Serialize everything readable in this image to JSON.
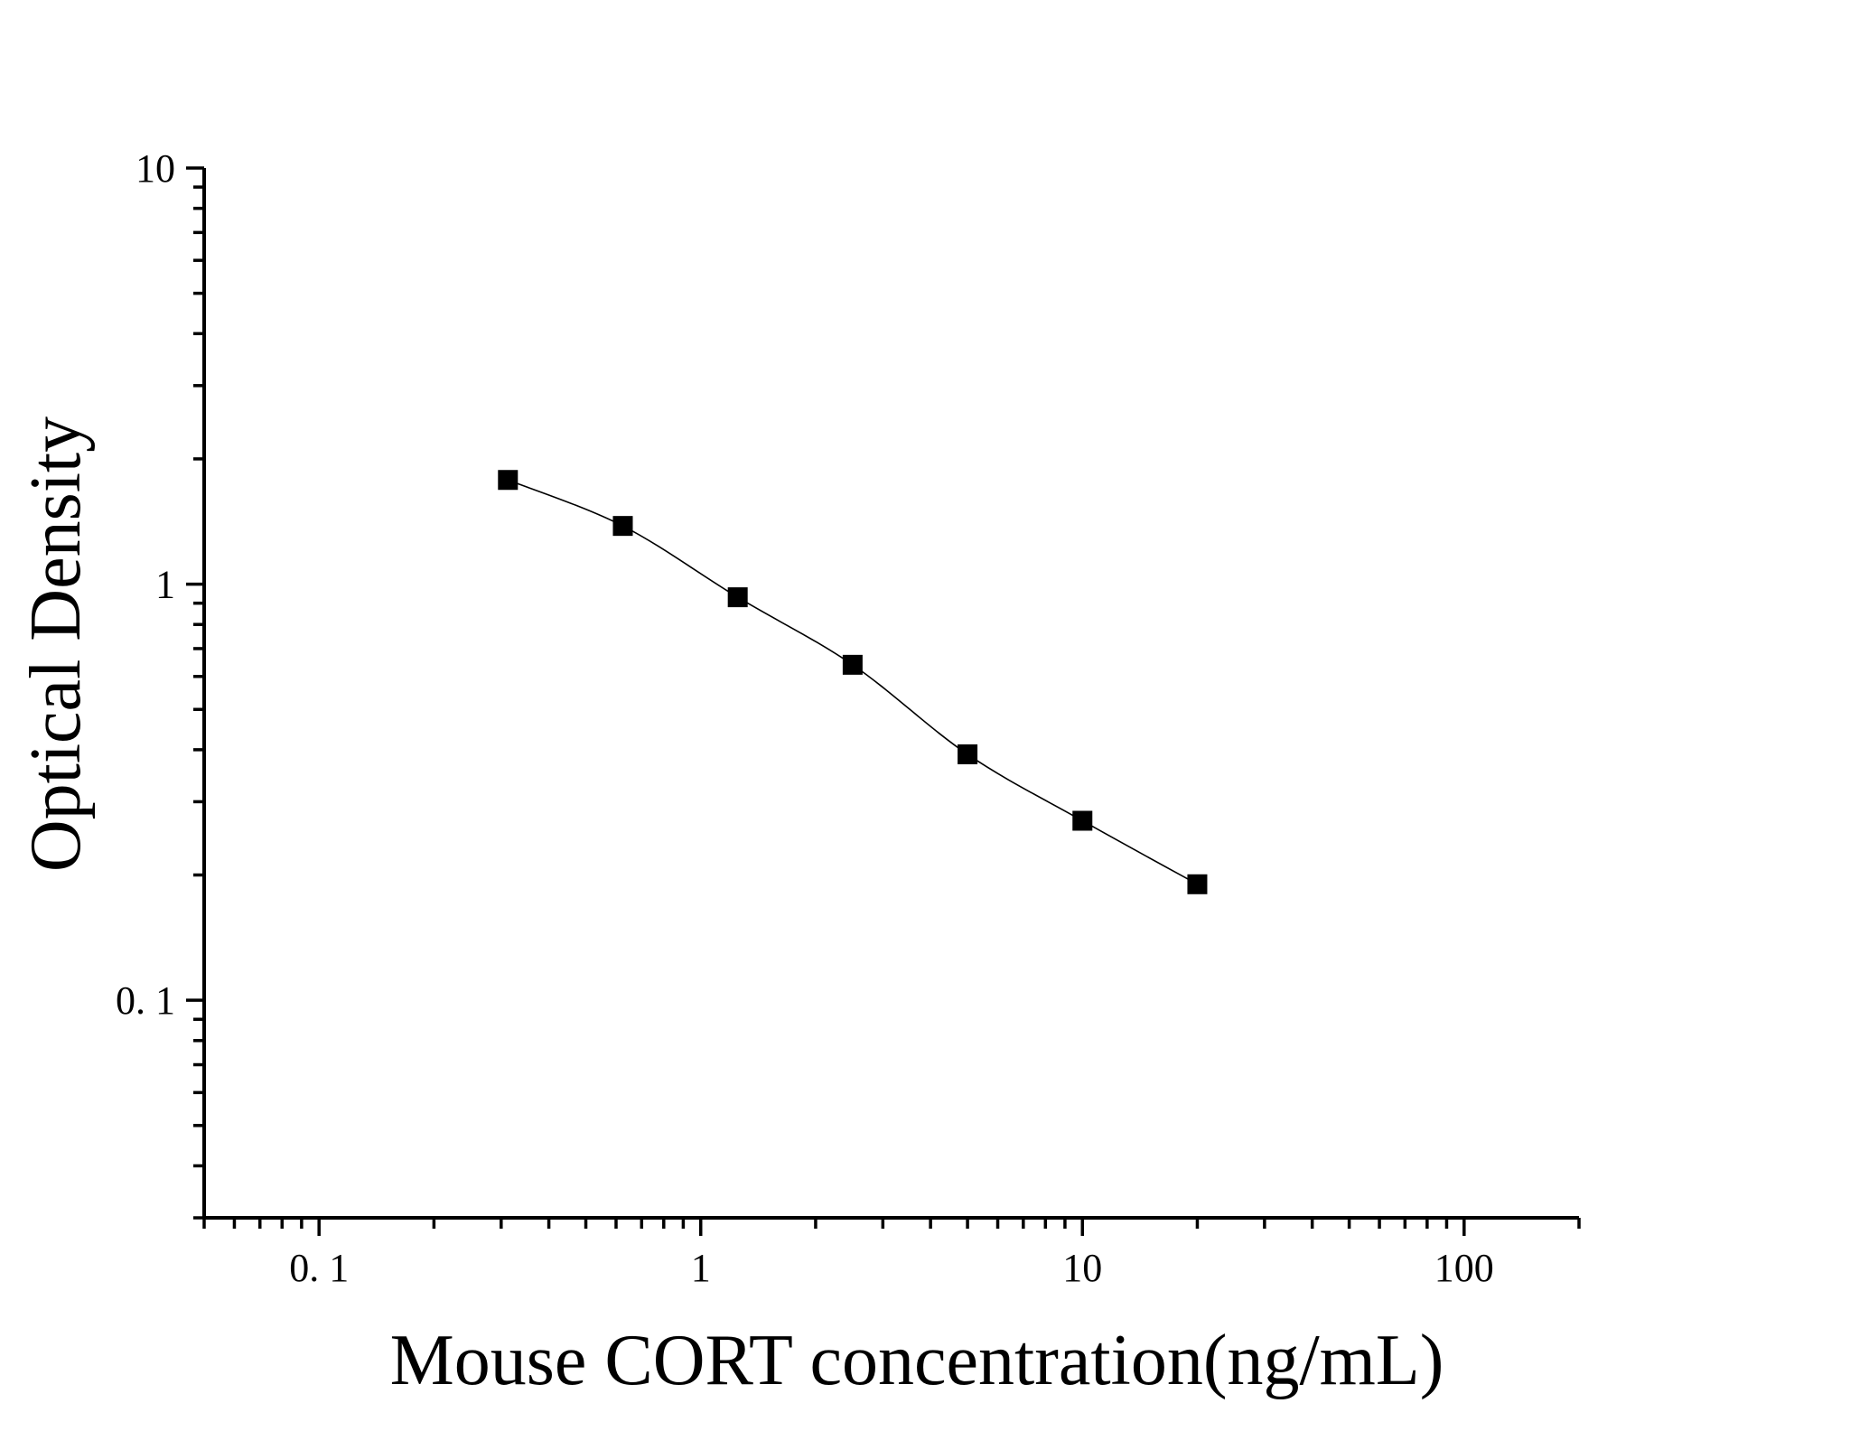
{
  "chart_data": {
    "type": "scatter",
    "xlabel": "Mouse CORT concentration(ng/mL)",
    "ylabel": "Optical Density",
    "x_scale": "log",
    "y_scale": "log",
    "xlim": [
      0.05,
      200
    ],
    "ylim": [
      0.03,
      10
    ],
    "x_ticks": [
      {
        "value": 0.1,
        "label": "0. 1"
      },
      {
        "value": 1,
        "label": "1"
      },
      {
        "value": 10,
        "label": "10"
      },
      {
        "value": 100,
        "label": "100"
      }
    ],
    "y_ticks": [
      {
        "value": 0.1,
        "label": "0. 1"
      },
      {
        "value": 1,
        "label": "1"
      },
      {
        "value": 10,
        "label": "10"
      }
    ],
    "grid": false,
    "series": [
      {
        "marker": "square",
        "x": [
          0.3125,
          0.625,
          1.25,
          2.5,
          5,
          10,
          20
        ],
        "y": [
          1.78,
          1.38,
          0.93,
          0.64,
          0.39,
          0.27,
          0.19
        ],
        "fit_curve": true
      }
    ]
  }
}
